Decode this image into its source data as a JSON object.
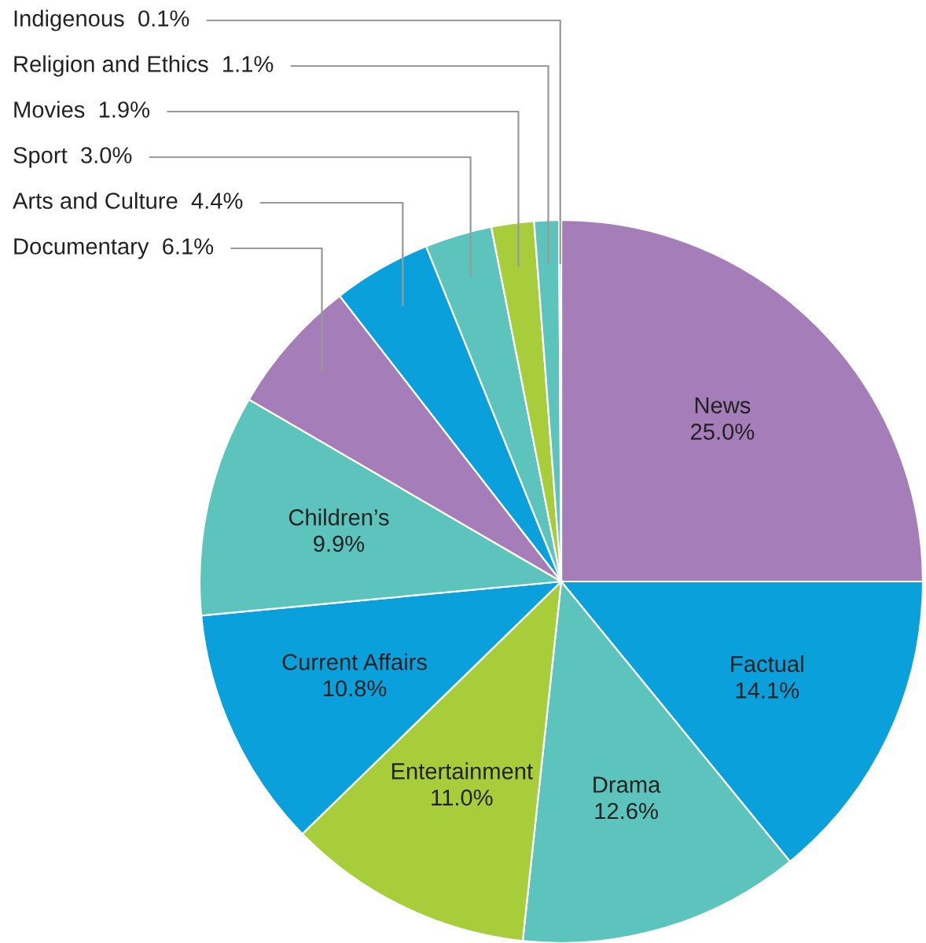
{
  "chart_data": {
    "type": "pie",
    "categories": [
      "News",
      "Factual",
      "Drama",
      "Entertainment",
      "Current Affairs",
      "Children’s",
      "Documentary",
      "Arts and Culture",
      "Sport",
      "Movies",
      "Religion and Ethics",
      "Indigenous"
    ],
    "values": [
      25.0,
      14.1,
      12.6,
      11.0,
      10.8,
      9.9,
      6.1,
      4.4,
      3.0,
      1.9,
      1.1,
      0.1
    ],
    "value_labels": [
      "25.0%",
      "14.1%",
      "12.6%",
      "11.0%",
      "10.8%",
      "9.9%",
      "6.1%",
      "4.4%",
      "3.0%",
      "1.9%",
      "1.1%",
      "0.1%"
    ],
    "colors": [
      "#a57db8",
      "#0aa0dc",
      "#5cc4bc",
      "#a8cd3a",
      "#0aa0dc",
      "#5cc4bc",
      "#a57db8",
      "#0aa0dc",
      "#5cc4bc",
      "#a8cd3a",
      "#5cc4bc",
      "#0aa0dc"
    ],
    "legend": false
  }
}
